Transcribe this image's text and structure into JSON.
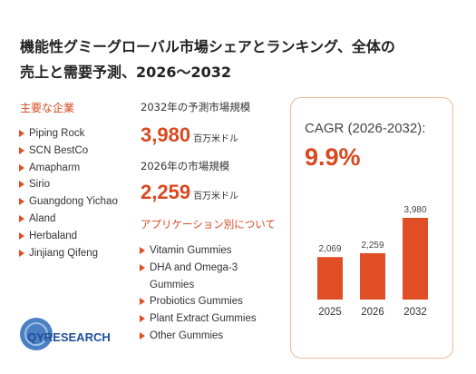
{
  "header": {
    "title_line1": "機能性グミーグローバル市場シェアとランキング、全体の",
    "title_line2": "売上と需要予測、2026～2032"
  },
  "companies": {
    "heading": "主要な企業",
    "items": [
      "Piping Rock",
      "SCN BestCo",
      "Amapharm",
      "Sirio",
      "Guangdong Yichao",
      "Aland",
      "Herbaland",
      "Jinjiang Qifeng"
    ]
  },
  "market": {
    "forecast_label": "2032年の予測市場規模",
    "forecast_value": "3,980",
    "forecast_unit": "百万米ドル",
    "current_label": "2026年の市場規模",
    "current_value": "2,259",
    "current_unit": "百万米ドル"
  },
  "applications": {
    "heading": "アプリケーション別について",
    "items": [
      "Vitamin Gummies",
      "DHA and Omega-3 Gummies",
      "Probiotics Gummies",
      "Plant Extract Gummies",
      "Other Gummies"
    ]
  },
  "cagr": {
    "label": "CAGR (2026-2032):",
    "value": "9.9%"
  },
  "chart_data": {
    "type": "bar",
    "categories": [
      "2025",
      "2026",
      "2032"
    ],
    "values": [
      2069,
      2259,
      3980
    ],
    "value_labels": [
      "2,069",
      "2,259",
      "3,980"
    ],
    "color": "#e04e25"
  },
  "logo": "QYRESEARCH"
}
